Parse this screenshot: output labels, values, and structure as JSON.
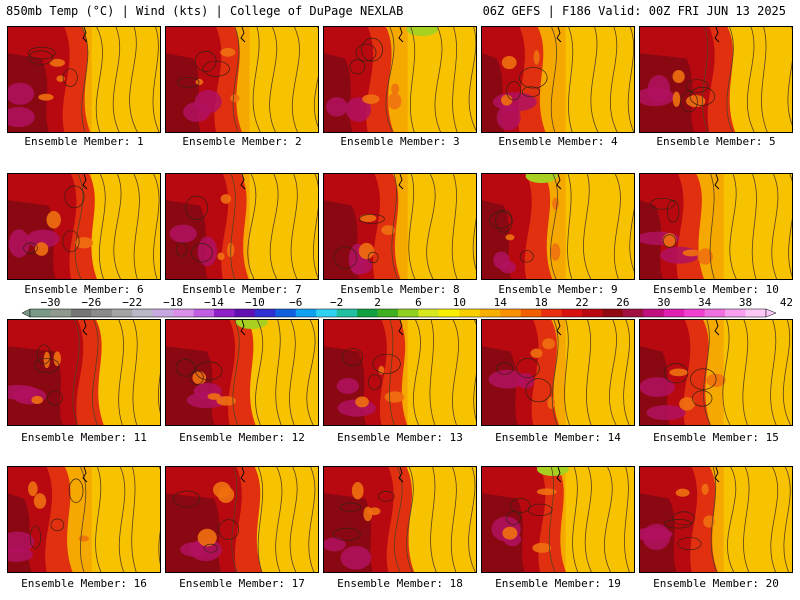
{
  "header": {
    "left": "850mb Temp (°C) | Wind (kts) | College of DuPage NEXLAB",
    "right": "06Z GEFS | F186 Valid: 00Z FRI JUN 13 2025"
  },
  "members": [
    {
      "label": "Ensemble Member: 1"
    },
    {
      "label": "Ensemble Member: 2"
    },
    {
      "label": "Ensemble Member: 3"
    },
    {
      "label": "Ensemble Member: 4"
    },
    {
      "label": "Ensemble Member: 5"
    },
    {
      "label": "Ensemble Member: 6"
    },
    {
      "label": "Ensemble Member: 7"
    },
    {
      "label": "Ensemble Member: 8"
    },
    {
      "label": "Ensemble Member: 9"
    },
    {
      "label": "Ensemble Member: 10"
    },
    {
      "label": "Ensemble Member: 11"
    },
    {
      "label": "Ensemble Member: 12"
    },
    {
      "label": "Ensemble Member: 13"
    },
    {
      "label": "Ensemble Member: 14"
    },
    {
      "label": "Ensemble Member: 15"
    },
    {
      "label": "Ensemble Member: 16"
    },
    {
      "label": "Ensemble Member: 17"
    },
    {
      "label": "Ensemble Member: 18"
    },
    {
      "label": "Ensemble Member: 19"
    },
    {
      "label": "Ensemble Member: 20"
    }
  ],
  "colorbar": {
    "ticks": [
      "−30",
      "−26",
      "−22",
      "−18",
      "−14",
      "−10",
      "−6",
      "−2",
      "2",
      "6",
      "10",
      "14",
      "18",
      "22",
      "26",
      "30",
      "34",
      "38",
      "42"
    ],
    "colors": [
      "#7a9a86",
      "#8e9a8e",
      "#767676",
      "#8a8a8a",
      "#a4a4a4",
      "#b8b8c8",
      "#c8a8e0",
      "#d890e8",
      "#c060e0",
      "#9020c8",
      "#6010b0",
      "#3030d0",
      "#1060e0",
      "#10a0f0",
      "#30d0f0",
      "#20c0a0",
      "#10a040",
      "#40b020",
      "#90d020",
      "#d8e820",
      "#f8f000",
      "#f8d000",
      "#f8b000",
      "#f89000",
      "#f06000",
      "#e83010",
      "#d81010",
      "#b80810",
      "#900810",
      "#a01040",
      "#c01080",
      "#e020b0",
      "#f040d0",
      "#f070e0",
      "#f8a0f0",
      "#fcc8f8"
    ]
  }
}
